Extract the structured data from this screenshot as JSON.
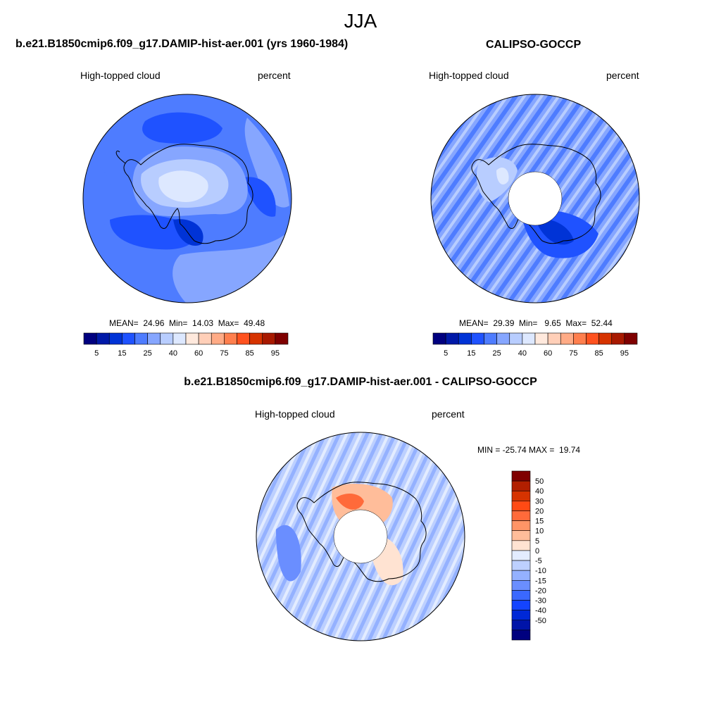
{
  "season": "JJA",
  "panels": [
    {
      "title": "b.e21.B1850cmip6.f09_g17.DAMIP-hist-aer.001 (yrs 1960-1984)",
      "variable": "High-topped cloud",
      "units": "percent",
      "stats": "MEAN=  24.96  Min=  14.03  Max=  49.48"
    },
    {
      "title": "CALIPSO-GOCCP",
      "variable": "High-topped cloud",
      "units": "percent",
      "stats": "MEAN=  29.39  Min=   9.65  Max=  52.44"
    }
  ],
  "diff": {
    "title": "b.e21.B1850cmip6.f09_g17.DAMIP-hist-aer.001 - CALIPSO-GOCCP",
    "variable": "High-topped cloud",
    "units": "percent",
    "minmax": "MIN = -25.74 MAX =  19.74"
  },
  "colorbar_main": {
    "colors": [
      "#00007f",
      "#0019a8",
      "#0033d6",
      "#1f52ff",
      "#4e7cff",
      "#86a6ff",
      "#b8cdff",
      "#dde8ff",
      "#ffe9dd",
      "#ffcfb8",
      "#ffab86",
      "#ff7f4e",
      "#ff521f",
      "#d63300",
      "#a81900",
      "#7f0000"
    ],
    "tick_labels": [
      "5",
      "15",
      "25",
      "40",
      "60",
      "75",
      "85",
      "95"
    ]
  },
  "colorbar_diff": {
    "colors": [
      "#7f0000",
      "#b11f00",
      "#d63300",
      "#ff4a14",
      "#ff6a3a",
      "#ff9466",
      "#ffbd9a",
      "#ffe3d2",
      "#e3ecff",
      "#bdd0ff",
      "#94b1ff",
      "#6a8eff",
      "#3a68ff",
      "#1444ff",
      "#0028d6",
      "#0014a8",
      "#00007f"
    ],
    "tick_labels": [
      "50",
      "40",
      "30",
      "20",
      "15",
      "10",
      "5",
      "0",
      "-5",
      "-10",
      "-15",
      "-20",
      "-30",
      "-40",
      "-50"
    ]
  },
  "palette": {
    "coast": "#000000",
    "blue_dark": "#1f52ff",
    "blue_mid": "#4e7cff",
    "blue_light": "#86a6ff",
    "blue_pale": "#b8cdff",
    "blue_faint": "#dde8ff",
    "orange_faint": "#ffe3d2",
    "orange_light": "#ffbd9a",
    "orange_mid": "#ff6a3a"
  }
}
